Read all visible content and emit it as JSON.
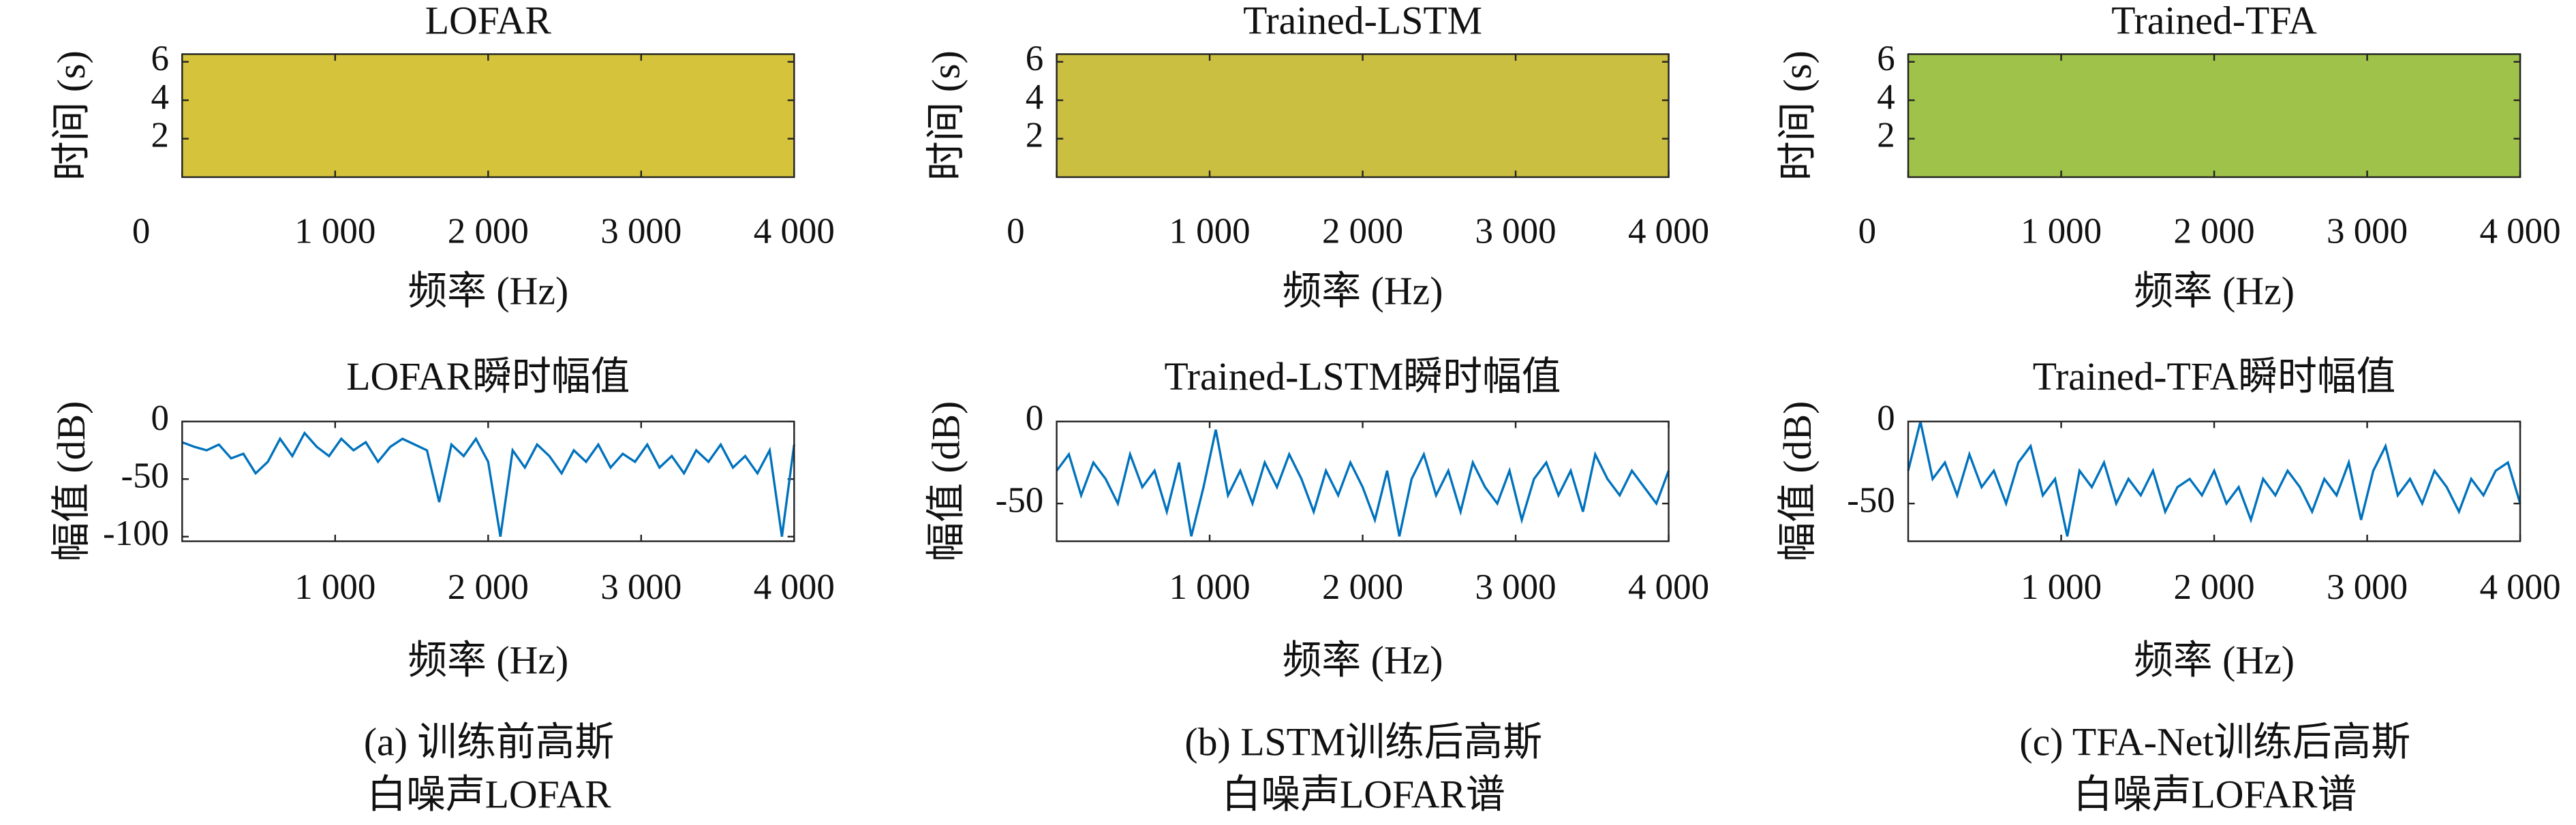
{
  "chart_data": [
    {
      "type": "heatmap",
      "title": "LOFAR",
      "xlabel": "频率 (Hz)",
      "ylabel": "时间 (s)",
      "color": "#d5c33b",
      "xlim": [
        0,
        4000
      ],
      "ylim": [
        0,
        6.4
      ],
      "xticks": [
        0,
        {
          "value": 1000,
          "label": "1 000"
        },
        {
          "value": 2000,
          "label": "2 000"
        },
        {
          "value": 3000,
          "label": "3 000"
        },
        {
          "value": 4000,
          "label": "4 000"
        }
      ],
      "yticks": [
        2,
        4,
        6
      ]
    },
    {
      "type": "line",
      "title": "LOFAR瞬时幅值",
      "xlabel": "频率 (Hz)",
      "ylabel": "幅值 (dB)",
      "color": "#0072bd",
      "xlim": [
        0,
        4000
      ],
      "ylim": [
        -104,
        0
      ],
      "xticks": [
        {
          "value": 1000,
          "label": "1 000"
        },
        {
          "value": 2000,
          "label": "2 000"
        },
        {
          "value": 3000,
          "label": "3 000"
        },
        {
          "value": 4000,
          "label": "4 000"
        }
      ],
      "yticks": [
        0,
        -50,
        -100
      ],
      "x": [
        0,
        80,
        160,
        240,
        320,
        400,
        480,
        560,
        640,
        720,
        800,
        880,
        960,
        1040,
        1120,
        1200,
        1280,
        1360,
        1440,
        1520,
        1600,
        1680,
        1760,
        1840,
        1920,
        2000,
        2080,
        2160,
        2240,
        2320,
        2400,
        2480,
        2560,
        2640,
        2720,
        2800,
        2880,
        2960,
        3040,
        3120,
        3200,
        3280,
        3360,
        3440,
        3520,
        3600,
        3680,
        3760,
        3840,
        3920,
        4000
      ],
      "values": [
        -18,
        -22,
        -25,
        -20,
        -32,
        -28,
        -45,
        -35,
        -15,
        -30,
        -10,
        -22,
        -30,
        -15,
        -25,
        -18,
        -35,
        -22,
        -15,
        -20,
        -25,
        -70,
        -20,
        -30,
        -15,
        -35,
        -100,
        -25,
        -40,
        -20,
        -30,
        -45,
        -25,
        -35,
        -20,
        -40,
        -28,
        -35,
        -20,
        -40,
        -30,
        -45,
        -25,
        -35,
        -20,
        -40,
        -30,
        -45,
        -25,
        -100,
        -20
      ]
    },
    {
      "type": "heatmap",
      "title": "Trained-LSTM",
      "xlabel": "频率 (Hz)",
      "ylabel": "时间 (s)",
      "color": "#cbbf41",
      "xlim": [
        0,
        4000
      ],
      "ylim": [
        0,
        6.4
      ],
      "xticks": [
        0,
        {
          "value": 1000,
          "label": "1 000"
        },
        {
          "value": 2000,
          "label": "2 000"
        },
        {
          "value": 3000,
          "label": "3 000"
        },
        {
          "value": 4000,
          "label": "4 000"
        }
      ],
      "yticks": [
        2,
        4,
        6
      ]
    },
    {
      "type": "line",
      "title": "Trained-LSTM瞬时幅值",
      "xlabel": "频率 (Hz)",
      "ylabel": "幅值 (dB)",
      "color": "#0072bd",
      "xlim": [
        0,
        4000
      ],
      "ylim": [
        -73,
        0
      ],
      "xticks": [
        {
          "value": 1000,
          "label": "1 000"
        },
        {
          "value": 2000,
          "label": "2 000"
        },
        {
          "value": 3000,
          "label": "3 000"
        },
        {
          "value": 4000,
          "label": "4 000"
        }
      ],
      "yticks": [
        0,
        -50
      ],
      "x": [
        0,
        80,
        160,
        240,
        320,
        400,
        480,
        560,
        640,
        720,
        800,
        880,
        960,
        1040,
        1120,
        1200,
        1280,
        1360,
        1440,
        1520,
        1600,
        1680,
        1760,
        1840,
        1920,
        2000,
        2080,
        2160,
        2240,
        2320,
        2400,
        2480,
        2560,
        2640,
        2720,
        2800,
        2880,
        2960,
        3040,
        3120,
        3200,
        3280,
        3360,
        3440,
        3520,
        3600,
        3680,
        3760,
        3840,
        3920,
        4000
      ],
      "values": [
        -30,
        -20,
        -45,
        -25,
        -35,
        -50,
        -20,
        -40,
        -30,
        -55,
        -25,
        -70,
        -40,
        -5,
        -45,
        -30,
        -50,
        -25,
        -40,
        -20,
        -35,
        -55,
        -30,
        -45,
        -25,
        -40,
        -60,
        -30,
        -70,
        -35,
        -20,
        -45,
        -30,
        -55,
        -25,
        -40,
        -50,
        -30,
        -60,
        -35,
        -25,
        -45,
        -30,
        -55,
        -20,
        -35,
        -45,
        -30,
        -40,
        -50,
        -30
      ]
    },
    {
      "type": "heatmap",
      "title": "Trained-TFA",
      "xlabel": "频率 (Hz)",
      "ylabel": "时间 (s)",
      "color": "#9fc24a",
      "xlim": [
        0,
        4000
      ],
      "ylim": [
        0,
        6.4
      ],
      "xticks": [
        0,
        {
          "value": 1000,
          "label": "1 000"
        },
        {
          "value": 2000,
          "label": "2 000"
        },
        {
          "value": 3000,
          "label": "3 000"
        },
        {
          "value": 4000,
          "label": "4 000"
        }
      ],
      "yticks": [
        2,
        4,
        6
      ]
    },
    {
      "type": "line",
      "title": "Trained-TFA瞬时幅值",
      "xlabel": "频率 (Hz)",
      "ylabel": "幅值 (dB)",
      "color": "#0072bd",
      "xlim": [
        0,
        4000
      ],
      "ylim": [
        -73,
        0
      ],
      "xticks": [
        {
          "value": 1000,
          "label": "1 000"
        },
        {
          "value": 2000,
          "label": "2 000"
        },
        {
          "value": 3000,
          "label": "3 000"
        },
        {
          "value": 4000,
          "label": "4 000"
        }
      ],
      "yticks": [
        0,
        -50
      ],
      "x": [
        0,
        80,
        160,
        240,
        320,
        400,
        480,
        560,
        640,
        720,
        800,
        880,
        960,
        1040,
        1120,
        1200,
        1280,
        1360,
        1440,
        1520,
        1600,
        1680,
        1760,
        1840,
        1920,
        2000,
        2080,
        2160,
        2240,
        2320,
        2400,
        2480,
        2560,
        2640,
        2720,
        2800,
        2880,
        2960,
        3040,
        3120,
        3200,
        3280,
        3360,
        3440,
        3520,
        3600,
        3680,
        3760,
        3840,
        3920,
        4000
      ],
      "values": [
        -30,
        0,
        -35,
        -25,
        -45,
        -20,
        -40,
        -30,
        -50,
        -25,
        -15,
        -45,
        -35,
        -70,
        -30,
        -40,
        -25,
        -50,
        -35,
        -45,
        -30,
        -55,
        -40,
        -35,
        -45,
        -30,
        -50,
        -40,
        -60,
        -35,
        -45,
        -30,
        -40,
        -55,
        -35,
        -45,
        -25,
        -60,
        -30,
        -15,
        -45,
        -35,
        -50,
        -30,
        -40,
        -55,
        -35,
        -45,
        -30,
        -25,
        -50
      ]
    }
  ],
  "captions": [
    [
      "(a) 训练前高斯",
      "白噪声LOFAR"
    ],
    [
      "(b) LSTM训练后高斯",
      "白噪声LOFAR谱"
    ],
    [
      "(c) TFA-Net训练后高斯",
      "白噪声LOFAR谱"
    ]
  ]
}
